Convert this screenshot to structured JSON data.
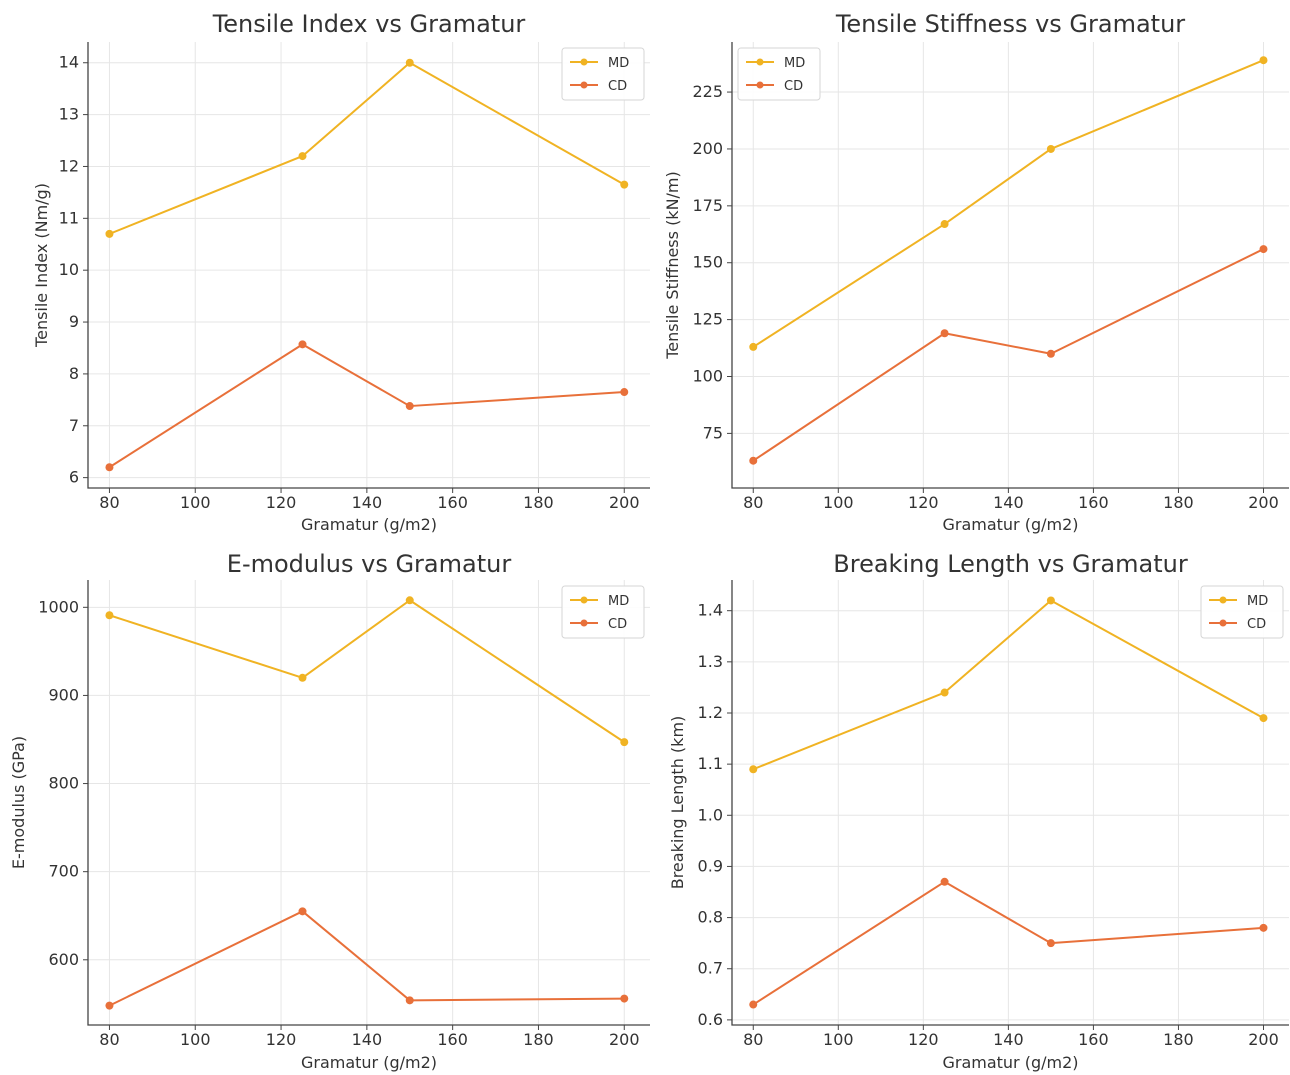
{
  "colors": {
    "MD": "#f0b323",
    "CD": "#e8703a"
  },
  "chart_data": [
    {
      "type": "line",
      "title": "Tensile Index vs Gramatur",
      "xlabel": "Gramatur (g/m2)",
      "ylabel": "Tensile Index (Nm/g)",
      "x": [
        80,
        125,
        150,
        200
      ],
      "xlim": [
        75,
        206
      ],
      "ylim": [
        5.8,
        14.4
      ],
      "xticks": [
        80,
        100,
        120,
        140,
        160,
        180,
        200
      ],
      "yticks": [
        6,
        7,
        8,
        9,
        10,
        11,
        12,
        13,
        14
      ],
      "legend_position": "top-right",
      "grid": true,
      "series": [
        {
          "name": "MD",
          "values": [
            10.7,
            12.2,
            14.0,
            11.65
          ]
        },
        {
          "name": "CD",
          "values": [
            6.2,
            8.57,
            7.38,
            7.65
          ]
        }
      ]
    },
    {
      "type": "line",
      "title": "Tensile Stiffness vs Gramatur",
      "xlabel": "Gramatur (g/m2)",
      "ylabel": "Tensile Stiffness (kN/m)",
      "x": [
        80,
        125,
        150,
        200
      ],
      "xlim": [
        75,
        206
      ],
      "ylim": [
        51,
        247
      ],
      "xticks": [
        80,
        100,
        120,
        140,
        160,
        180,
        200
      ],
      "yticks": [
        75,
        100,
        125,
        150,
        175,
        200,
        225
      ],
      "legend_position": "top-left",
      "grid": true,
      "series": [
        {
          "name": "MD",
          "values": [
            113,
            167,
            200,
            239
          ]
        },
        {
          "name": "CD",
          "values": [
            63,
            119,
            110,
            156
          ]
        }
      ]
    },
    {
      "type": "line",
      "title": "E-modulus vs Gramatur",
      "xlabel": "Gramatur (g/m2)",
      "ylabel": "E-modulus (GPa)",
      "x": [
        80,
        125,
        150,
        200
      ],
      "xlim": [
        75,
        206
      ],
      "ylim": [
        526,
        1031
      ],
      "xticks": [
        80,
        100,
        120,
        140,
        160,
        180,
        200
      ],
      "yticks": [
        600,
        700,
        800,
        900,
        1000
      ],
      "legend_position": "top-right",
      "grid": true,
      "series": [
        {
          "name": "MD",
          "values": [
            991,
            920,
            1008,
            847
          ]
        },
        {
          "name": "CD",
          "values": [
            548,
            655,
            554,
            556
          ]
        }
      ]
    },
    {
      "type": "line",
      "title": "Breaking Length vs Gramatur",
      "xlabel": "Gramatur (g/m2)",
      "ylabel": "Breaking Length (km)",
      "x": [
        80,
        125,
        150,
        200
      ],
      "xlim": [
        75,
        206
      ],
      "ylim": [
        0.59,
        1.46
      ],
      "xticks": [
        80,
        100,
        120,
        140,
        160,
        180,
        200
      ],
      "yticks": [
        0.6,
        0.7,
        0.8,
        0.9,
        1.0,
        1.1,
        1.2,
        1.3,
        1.4
      ],
      "ytick_decimals": 1,
      "legend_position": "top-right",
      "grid": true,
      "series": [
        {
          "name": "MD",
          "values": [
            1.09,
            1.24,
            1.42,
            1.19
          ]
        },
        {
          "name": "CD",
          "values": [
            0.63,
            0.87,
            0.75,
            0.78
          ]
        }
      ]
    }
  ]
}
